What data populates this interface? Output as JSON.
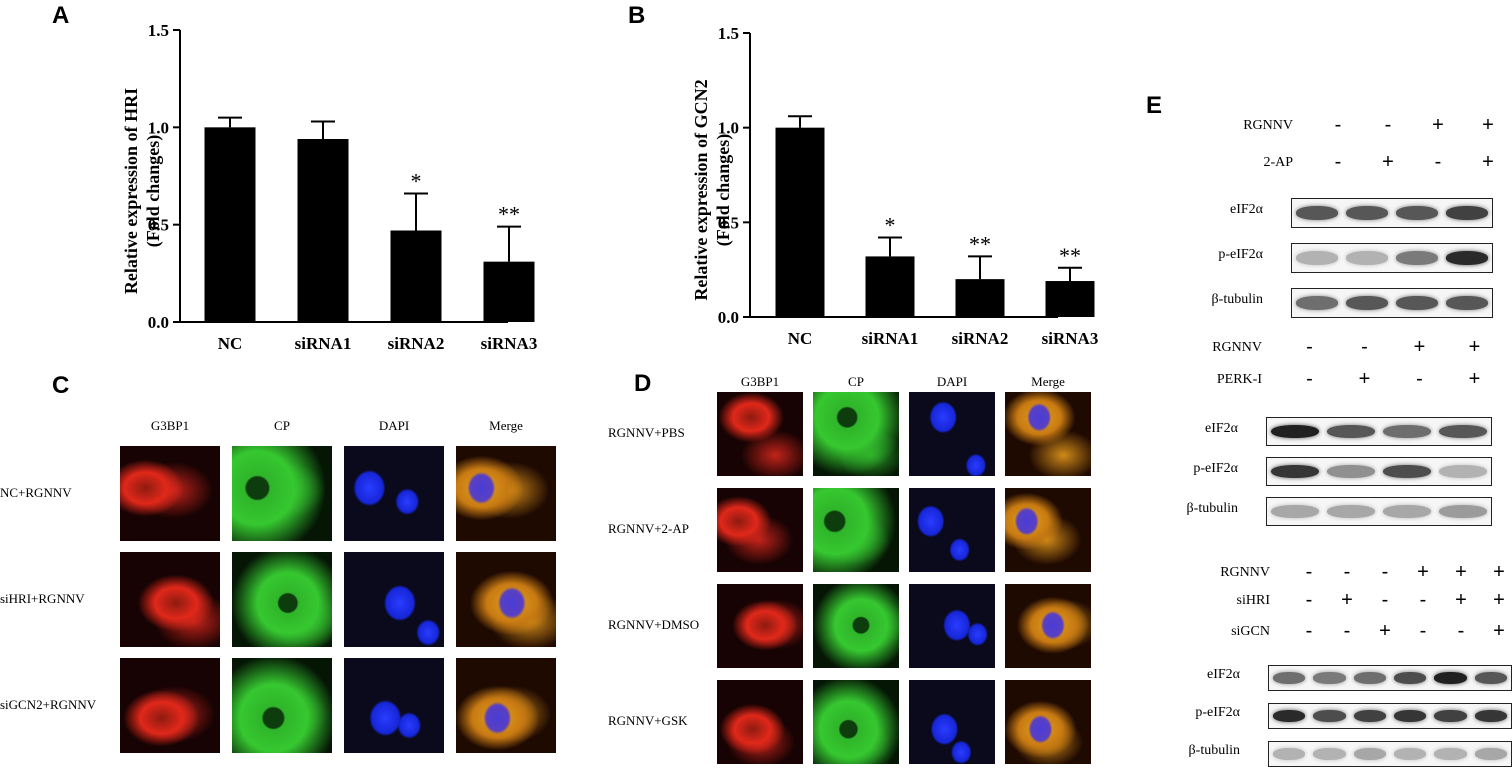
{
  "chart_data": [
    {
      "panel": "A",
      "type": "bar",
      "categories": [
        "NC",
        "siRNA1",
        "siRNA2",
        "siRNA3"
      ],
      "values": [
        1.0,
        0.94,
        0.47,
        0.31
      ],
      "errors": [
        0.05,
        0.09,
        0.19,
        0.18
      ],
      "significance": [
        "",
        "",
        "*",
        "**"
      ],
      "ylabel_line1": "Relative expression of HRI",
      "ylabel_line2": "(Fold changes)",
      "ylim": [
        0,
        1.5
      ],
      "yticks": [
        "0.0",
        "0.5",
        "1.0",
        "1.5"
      ]
    },
    {
      "panel": "B",
      "type": "bar",
      "categories": [
        "NC",
        "siRNA1",
        "siRNA2",
        "siRNA3"
      ],
      "values": [
        1.0,
        0.32,
        0.2,
        0.19
      ],
      "errors": [
        0.06,
        0.1,
        0.12,
        0.07
      ],
      "significance": [
        "",
        "*",
        "**",
        "**"
      ],
      "ylabel_line1": "Relative expression of GCN2",
      "ylabel_line2": "(Fold changes)",
      "ylim": [
        0,
        1.5
      ],
      "yticks": [
        "0.0",
        "0.5",
        "1.0",
        "1.5"
      ]
    }
  ],
  "panels": {
    "a": "A",
    "b": "B",
    "c": "C",
    "d": "D",
    "e": "E"
  },
  "micrographs_c": {
    "columns": [
      "G3BP1",
      "CP",
      "DAPI",
      "Merge"
    ],
    "rows": [
      "NC+RGNNV",
      "siHRI+RGNNV",
      "siGCN2+RGNNV"
    ]
  },
  "micrographs_d": {
    "columns": [
      "G3BP1",
      "CP",
      "DAPI",
      "Merge"
    ],
    "rows": [
      "RGNNV+PBS",
      "RGNNV+2-AP",
      "RGNNV+DMSO",
      "RGNNV+GSK"
    ]
  },
  "western_e": [
    {
      "conditions": [
        {
          "label": "RGNNV",
          "signs": [
            "-",
            "-",
            "+",
            "+"
          ]
        },
        {
          "label": "2-AP",
          "signs": [
            "-",
            "+",
            "-",
            "+"
          ]
        }
      ],
      "blots": [
        "eIF2α",
        "p-eIF2α",
        "β-tubulin"
      ]
    },
    {
      "conditions": [
        {
          "label": "RGNNV",
          "signs": [
            "-",
            "-",
            "+",
            "+"
          ]
        },
        {
          "label": "PERK-I",
          "signs": [
            "-",
            "+",
            "-",
            "+"
          ]
        }
      ],
      "blots": [
        "eIF2α",
        "p-eIF2α",
        "β-tubulin"
      ]
    },
    {
      "conditions": [
        {
          "label": "RGNNV",
          "signs": [
            "-",
            "-",
            "-",
            "+",
            "+",
            "+"
          ]
        },
        {
          "label": "siHRI",
          "signs": [
            "-",
            "+",
            "-",
            "-",
            "+",
            "+"
          ]
        },
        {
          "label": "siGCN",
          "signs": [
            "-",
            "-",
            "+",
            "-",
            "-",
            "+"
          ]
        }
      ],
      "blots": [
        "eIF2α",
        "p-eIF2α",
        "β-tubulin"
      ]
    }
  ],
  "colors": {
    "bar": "#000000",
    "g3bp1": "#d81c10",
    "cp": "#2fb52a",
    "dapi": "#1a2cf0",
    "merge": "#c9a315"
  }
}
